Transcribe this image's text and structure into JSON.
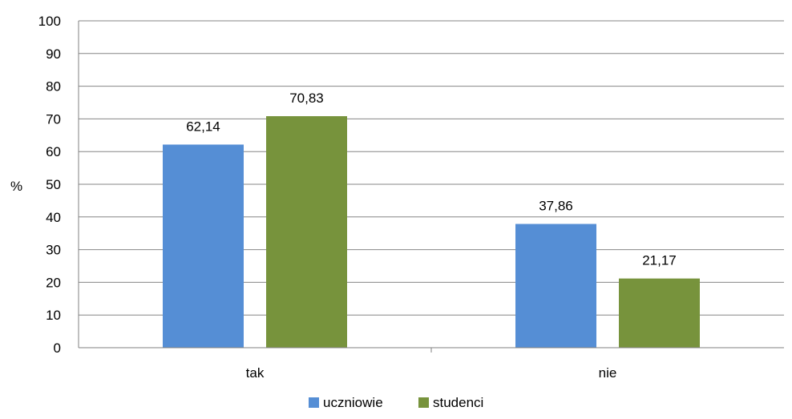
{
  "chart_data": {
    "type": "bar",
    "categories": [
      "tak",
      "nie"
    ],
    "series": [
      {
        "name": "uczniowie",
        "values": [
          62.14,
          37.86
        ],
        "labels": [
          "62,14",
          "37,86"
        ],
        "color": "#558ED5"
      },
      {
        "name": "studenci",
        "values": [
          70.83,
          21.17
        ],
        "labels": [
          "70,83",
          "21,17"
        ],
        "color": "#77933C"
      }
    ],
    "ylabel": "%",
    "ylim": [
      0,
      100
    ],
    "yticks": [
      0,
      10,
      20,
      30,
      40,
      50,
      60,
      70,
      80,
      90,
      100
    ],
    "grid": true,
    "legend": "bottom"
  }
}
